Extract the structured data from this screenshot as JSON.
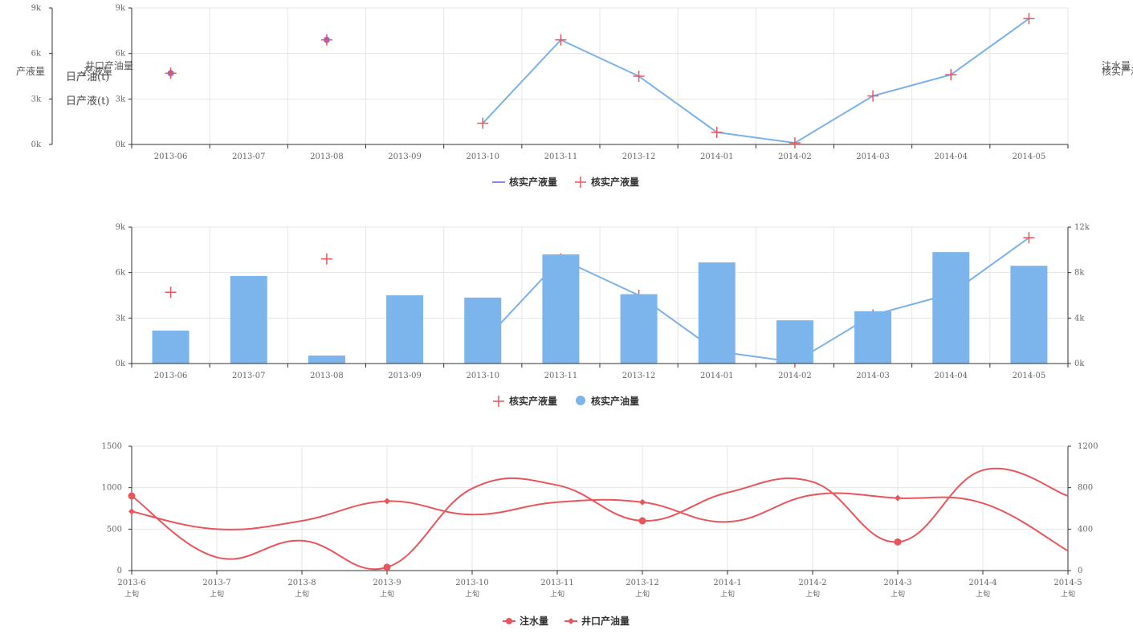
{
  "colors": {
    "line_blue": "#7ab1e8",
    "bar_blue": "#7cb5ec",
    "red": "#e8555a",
    "purple": "#8e6ad8",
    "legend_line": "#8f83e6",
    "grid": "#e6e6e6"
  },
  "side_labels": {
    "left_yield": "产液量",
    "oil_jk": "井口产油量",
    "oil_jk2": "产液量",
    "daily_oil": "日产油(t)",
    "daily_liquid": "日产液(t)",
    "right_water": "注水量",
    "right_verified": "核实产液量"
  },
  "chart_data": [
    {
      "type": "line",
      "categories": [
        "2013-06",
        "2013-07",
        "2013-08",
        "2013-09",
        "2013-10",
        "2013-11",
        "2013-12",
        "2014-01",
        "2014-02",
        "2014-03",
        "2014-04",
        "2014-05"
      ],
      "y_ticks": [
        "0k",
        "3k",
        "6k",
        "9k"
      ],
      "ylim": [
        0,
        9000
      ],
      "series": [
        {
          "name": "核实产液量",
          "kind": "line",
          "values": [
            4700,
            null,
            6900,
            null,
            1400,
            6900,
            4500,
            800,
            100,
            3200,
            4600,
            8300
          ]
        },
        {
          "name": "核实产液量",
          "kind": "scatter",
          "values": [
            4700,
            null,
            6900,
            null,
            1400,
            6900,
            4500,
            800,
            100,
            3200,
            4600,
            8300
          ]
        }
      ],
      "legend": [
        "核实产液量",
        "核实产液量"
      ]
    },
    {
      "type": "bar",
      "categories": [
        "2013-06",
        "2013-07",
        "2013-08",
        "2013-09",
        "2013-10",
        "2013-11",
        "2013-12",
        "2014-01",
        "2014-02",
        "2014-03",
        "2014-04",
        "2014-05"
      ],
      "y_ticks_left": [
        "0k",
        "3k",
        "6k",
        "9k"
      ],
      "y_ticks_right": [
        "0k",
        "4k",
        "8k",
        "12k"
      ],
      "ylim_left": [
        0,
        9000
      ],
      "ylim_right": [
        0,
        12000
      ],
      "series": [
        {
          "name": "核实产液量",
          "kind": "scatter",
          "axis": "left",
          "values": [
            4700,
            null,
            6900,
            null,
            1400,
            6900,
            4500,
            800,
            100,
            3200,
            4600,
            8300
          ]
        },
        {
          "name": "核实产油量",
          "kind": "bar",
          "axis": "right",
          "values": [
            2900,
            7700,
            700,
            6000,
            5800,
            9600,
            6100,
            8900,
            3800,
            4600,
            9800,
            8600
          ]
        }
      ],
      "legend": [
        "核实产液量",
        "核实产油量"
      ]
    },
    {
      "type": "line",
      "categories": [
        "2013-6",
        "2013-7",
        "2013-8",
        "2013-9",
        "2013-10",
        "2013-11",
        "2013-12",
        "2014-1",
        "2014-2",
        "2014-3",
        "2014-4",
        "2014-5"
      ],
      "category_sub": "上旬",
      "y_ticks_left": [
        "0",
        "500",
        "1000",
        "1500"
      ],
      "y_ticks_right": [
        "0",
        "400",
        "800",
        "1200"
      ],
      "ylim_left": [
        0,
        1500
      ],
      "ylim_right": [
        0,
        1200
      ],
      "series": [
        {
          "name": "注水量",
          "axis": "left",
          "values": [
            900,
            160,
            360,
            40,
            990,
            1030,
            600,
            940,
            1070,
            345,
            1210,
            900
          ],
          "marked": [
            0,
            3,
            6,
            9
          ]
        },
        {
          "name": "井口产油量",
          "axis": "right",
          "values": [
            570,
            400,
            480,
            670,
            540,
            660,
            660,
            470,
            730,
            700,
            650,
            190
          ],
          "marked": [
            0,
            3,
            6,
            9
          ]
        }
      ],
      "legend": [
        "注水量",
        "井口产油量"
      ]
    }
  ]
}
